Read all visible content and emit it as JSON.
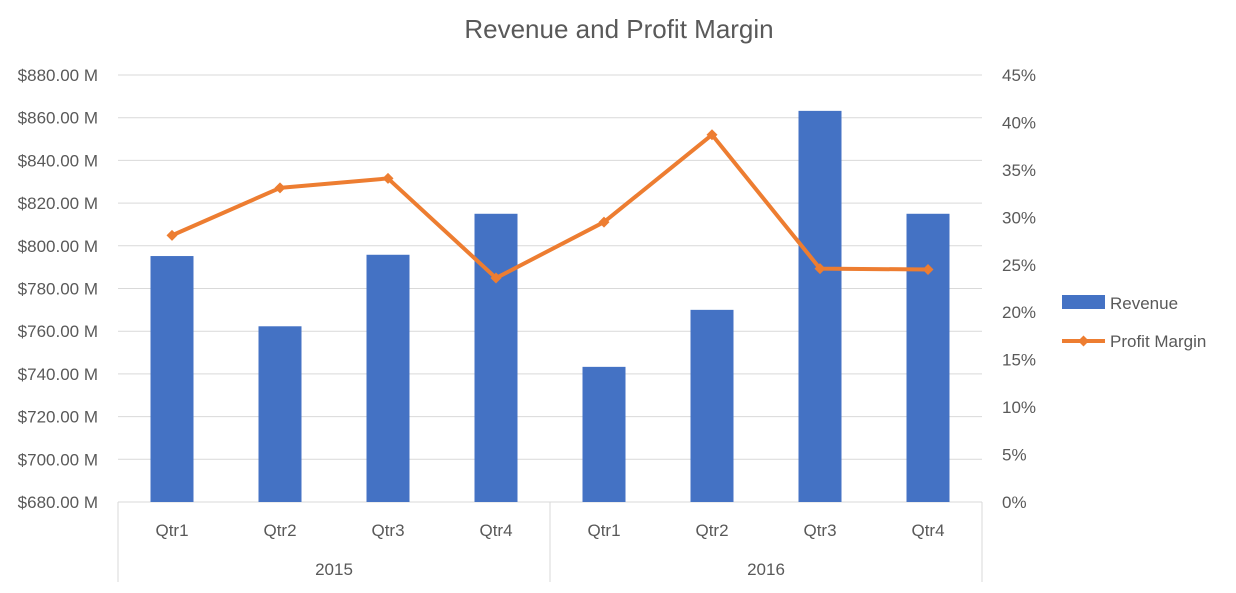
{
  "chart_data": {
    "type": "bar",
    "title": "Revenue and Profit Margin",
    "categories": [
      "Qtr1",
      "Qtr2",
      "Qtr3",
      "Qtr4",
      "Qtr1",
      "Qtr2",
      "Qtr3",
      "Qtr4"
    ],
    "groups": [
      {
        "label": "2015",
        "span": 4
      },
      {
        "label": "2016",
        "span": 4
      }
    ],
    "series": [
      {
        "name": "Revenue",
        "kind": "bar",
        "axis": "left",
        "color": "#4472C4",
        "values": [
          795.2,
          762.3,
          795.8,
          815.0,
          743.3,
          770.0,
          863.2,
          815.0
        ]
      },
      {
        "name": "Profit Margin",
        "kind": "line",
        "marker": "diamond",
        "axis": "right",
        "color": "#ED7D31",
        "values": [
          28.1,
          33.1,
          34.1,
          23.6,
          29.5,
          38.7,
          24.6,
          24.5
        ]
      }
    ],
    "y_left": {
      "min": 680,
      "max": 880,
      "step": 20,
      "tick_labels": [
        "$680.00 M",
        "$700.00 M",
        "$720.00 M",
        "$740.00 M",
        "$760.00 M",
        "$780.00 M",
        "$800.00 M",
        "$820.00 M",
        "$840.00 M",
        "$860.00 M",
        "$880.00 M"
      ]
    },
    "y_right": {
      "min": 0,
      "max": 45,
      "step": 5,
      "tick_labels": [
        "0%",
        "5%",
        "10%",
        "15%",
        "20%",
        "25%",
        "30%",
        "35%",
        "40%",
        "45%"
      ]
    },
    "grid": true,
    "legend": "right",
    "colors": {
      "text": "#595959",
      "title": "#595959",
      "grid": "#D9D9D9"
    }
  }
}
